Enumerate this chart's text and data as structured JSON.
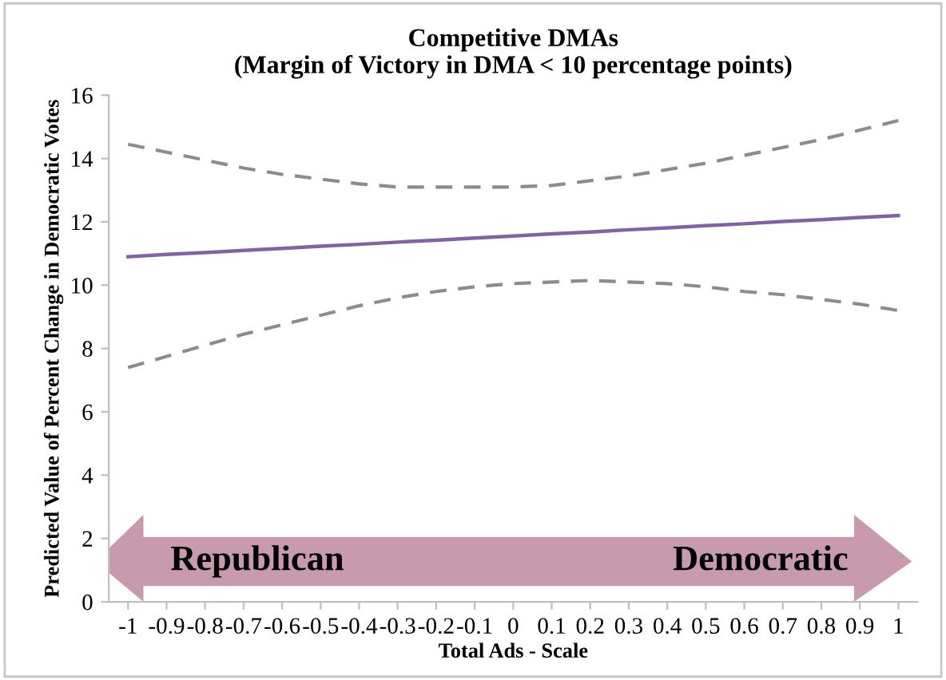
{
  "chart_data": {
    "type": "line",
    "title": "Competitive DMAs\n(Margin of Victory in DMA < 10 percentage points)",
    "xlabel": "Total Ads - Scale",
    "ylabel": "Predicted Value of Percent Change in Democratic Votes",
    "categories": [
      "-1",
      "-0.9",
      "-0.8",
      "-0.7",
      "-0.6",
      "-0.5",
      "-0.4",
      "-0.3",
      "-0.2",
      "-0.1",
      "0",
      "0.1",
      "0.2",
      "0.3",
      "0.4",
      "0.5",
      "0.6",
      "0.7",
      "0.8",
      "0.9",
      "1"
    ],
    "series": [
      {
        "color": "#8064a2",
        "line_style": "solid",
        "values": [
          10.9,
          10.97,
          11.03,
          11.1,
          11.16,
          11.23,
          11.29,
          11.36,
          11.42,
          11.49,
          11.55,
          11.62,
          11.68,
          11.75,
          11.81,
          11.88,
          11.94,
          12.01,
          12.07,
          12.14,
          12.2
        ]
      },
      {
        "color": "#8c8c8c",
        "line_style": "dashed",
        "values": [
          14.45,
          14.2,
          13.95,
          13.7,
          13.5,
          13.35,
          13.2,
          13.1,
          13.1,
          13.1,
          13.1,
          13.15,
          13.3,
          13.45,
          13.65,
          13.85,
          14.1,
          14.35,
          14.6,
          14.9,
          15.2
        ]
      },
      {
        "color": "#8c8c8c",
        "line_style": "dashed",
        "values": [
          7.4,
          7.75,
          8.1,
          8.45,
          8.75,
          9.05,
          9.35,
          9.6,
          9.8,
          9.95,
          10.05,
          10.1,
          10.15,
          10.1,
          10.05,
          9.95,
          9.8,
          9.7,
          9.55,
          9.4,
          9.2
        ]
      }
    ],
    "ylim": [
      0,
      16
    ],
    "yticks": [
      0,
      2,
      4,
      6,
      8,
      10,
      12,
      14,
      16
    ],
    "grid": false,
    "legend": false,
    "marker": "none",
    "annotations": [
      "Republican",
      "Democratic"
    ]
  }
}
